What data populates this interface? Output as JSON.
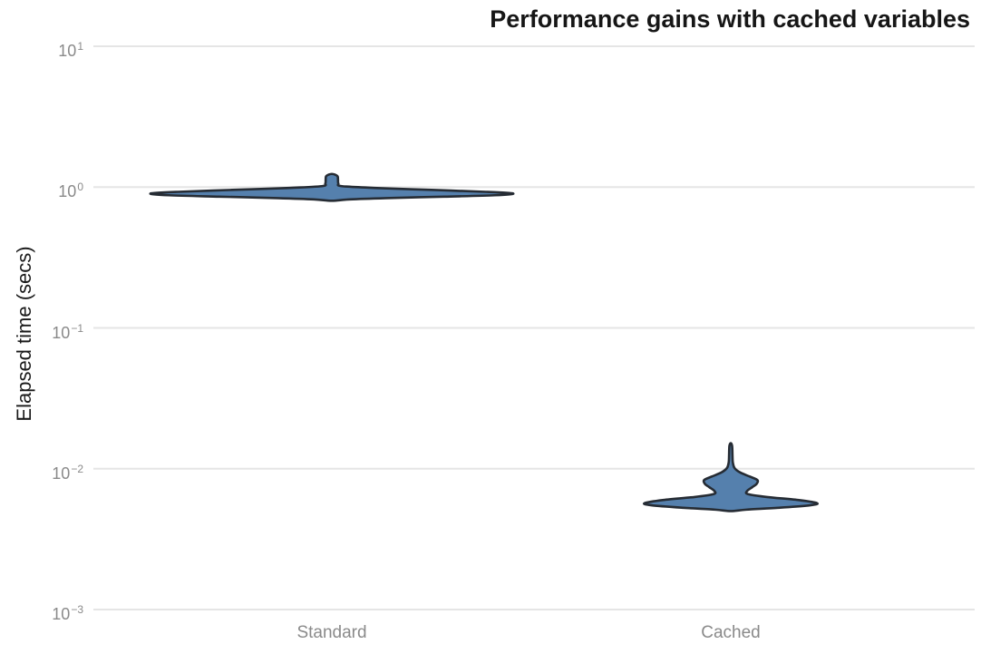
{
  "title": "Performance gains with cached variables",
  "axes": {
    "y_label": "Elapsed time (secs)"
  },
  "chart_data": {
    "type": "violin",
    "title": "Performance gains with cached variables",
    "ylabel": "Elapsed time (secs)",
    "xlabel": "",
    "yscale": "log",
    "ylim": [
      0.001,
      10
    ],
    "grid": true,
    "legend": "none",
    "categories": [
      "Standard",
      "Cached"
    ],
    "y_ticks": [
      {
        "exp": 1,
        "base": "10",
        "exp_label": "1"
      },
      {
        "exp": 0,
        "base": "10",
        "exp_label": "0"
      },
      {
        "exp": -1,
        "base": "10",
        "exp_label": "−1"
      },
      {
        "exp": -2,
        "base": "10",
        "exp_label": "−2"
      },
      {
        "exp": -3,
        "base": "10",
        "exp_label": "−3"
      }
    ],
    "colors": {
      "violin_fill": "#5580ad",
      "violin_edge": "#262c34",
      "grid_line": "#e5e5e5",
      "tick_text": "#8a8a8a",
      "title_text": "#161616",
      "background": "#ffffff"
    },
    "series": [
      {
        "name": "Standard",
        "summary": {
          "min_secs": 0.8,
          "max_secs": 1.24,
          "mode_secs": 0.9
        },
        "profile": [
          {
            "v": 1.24,
            "w": 0.0
          },
          {
            "v": 1.2,
            "w": 0.03
          },
          {
            "v": 1.13,
            "w": 0.034
          },
          {
            "v": 1.06,
            "w": 0.036
          },
          {
            "v": 1.015,
            "w": 0.055
          },
          {
            "v": 0.985,
            "w": 0.25
          },
          {
            "v": 0.955,
            "w": 0.55
          },
          {
            "v": 0.925,
            "w": 0.85
          },
          {
            "v": 0.9,
            "w": 1.0
          },
          {
            "v": 0.875,
            "w": 0.9
          },
          {
            "v": 0.855,
            "w": 0.62
          },
          {
            "v": 0.835,
            "w": 0.3
          },
          {
            "v": 0.818,
            "w": 0.1
          },
          {
            "v": 0.8,
            "w": 0.0
          }
        ]
      },
      {
        "name": "Cached",
        "summary": {
          "min_secs": 0.005,
          "max_secs": 0.0152,
          "mode_secs": 0.0056,
          "secondary_mode_secs": 0.0082
        },
        "profile": [
          {
            "v": 0.0152,
            "w": 0.0
          },
          {
            "v": 0.0147,
            "w": 0.014
          },
          {
            "v": 0.0138,
            "w": 0.018
          },
          {
            "v": 0.0124,
            "w": 0.02
          },
          {
            "v": 0.0111,
            "w": 0.024
          },
          {
            "v": 0.0101,
            "w": 0.045
          },
          {
            "v": 0.0094,
            "w": 0.11
          },
          {
            "v": 0.0088,
            "w": 0.22
          },
          {
            "v": 0.0083,
            "w": 0.31
          },
          {
            "v": 0.0078,
            "w": 0.3
          },
          {
            "v": 0.0074,
            "w": 0.25
          },
          {
            "v": 0.00695,
            "w": 0.19
          },
          {
            "v": 0.0066,
            "w": 0.2
          },
          {
            "v": 0.0063,
            "w": 0.42
          },
          {
            "v": 0.006,
            "w": 0.78
          },
          {
            "v": 0.0057,
            "w": 1.0
          },
          {
            "v": 0.0055,
            "w": 0.92
          },
          {
            "v": 0.00528,
            "w": 0.55
          },
          {
            "v": 0.00512,
            "w": 0.18
          },
          {
            "v": 0.005,
            "w": 0.0
          }
        ]
      }
    ]
  }
}
